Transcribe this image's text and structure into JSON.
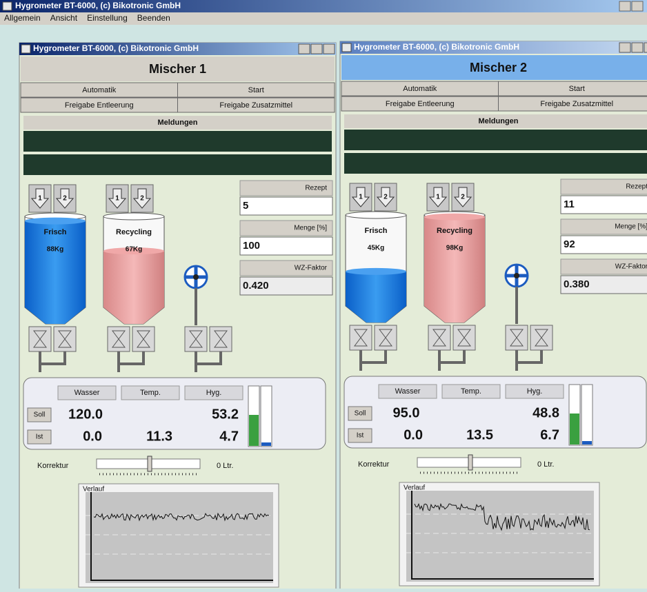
{
  "window": {
    "title": "Hygrometer BT-6000, (c) Bikotronic GmbH",
    "menu": [
      "Allgemein",
      "Ansicht",
      "Einstellung",
      "Beenden"
    ]
  },
  "panels": [
    {
      "title": "Hygrometer BT-6000, (c) Bikotronic GmbH",
      "heading": "Mischer 1",
      "buttons": [
        "Automatik",
        "Start",
        "Freigabe Entleerung",
        "Freigabe Zusatzmittel"
      ],
      "messages": "Meldungen",
      "valve_labels": [
        "1",
        "2"
      ],
      "tanks": [
        {
          "label": "Frisch",
          "weight": "88Kg"
        },
        {
          "label": "Recycling",
          "weight": "67Kg"
        }
      ],
      "fields": [
        {
          "label": "Rezept",
          "value": "5"
        },
        {
          "label": "Menge [%]",
          "value": "100"
        },
        {
          "label": "WZ-Faktor",
          "value": "0.420"
        }
      ],
      "columns": [
        "Wasser",
        "Temp.",
        "Hyg."
      ],
      "soll": {
        "label": "Soll",
        "wasser": "120.0",
        "hyg": "53.2"
      },
      "ist": {
        "label": "Ist",
        "values": [
          "0.0",
          "11.3",
          "4.7"
        ]
      },
      "korrektur": {
        "label": "Korrektur",
        "value": "0 Ltr."
      },
      "trend": "Verlauf"
    },
    {
      "title": "Hygrometer BT-6000, (c) Bikotronic GmbH",
      "heading": "Mischer 2",
      "buttons": [
        "Automatik",
        "Start",
        "Freigabe Entleerung",
        "Freigabe Zusatzmittel"
      ],
      "messages": "Meldungen",
      "valve_labels": [
        "1",
        "2"
      ],
      "tanks": [
        {
          "label": "Frisch",
          "weight": "45Kg"
        },
        {
          "label": "Recycling",
          "weight": "98Kg"
        }
      ],
      "fields": [
        {
          "label": "Rezept",
          "value": "11"
        },
        {
          "label": "Menge [%]",
          "value": "92"
        },
        {
          "label": "WZ-Faktor",
          "value": "0.380"
        }
      ],
      "columns": [
        "Wasser",
        "Temp.",
        "Hyg."
      ],
      "soll": {
        "label": "Soll",
        "wasser": "95.0",
        "hyg": "48.8"
      },
      "ist": {
        "label": "Ist",
        "values": [
          "0.0",
          "13.5",
          "6.7"
        ]
      },
      "korrektur": {
        "label": "Korrektur",
        "value": "0 Ltr."
      },
      "trend": "Verlauf"
    }
  ]
}
